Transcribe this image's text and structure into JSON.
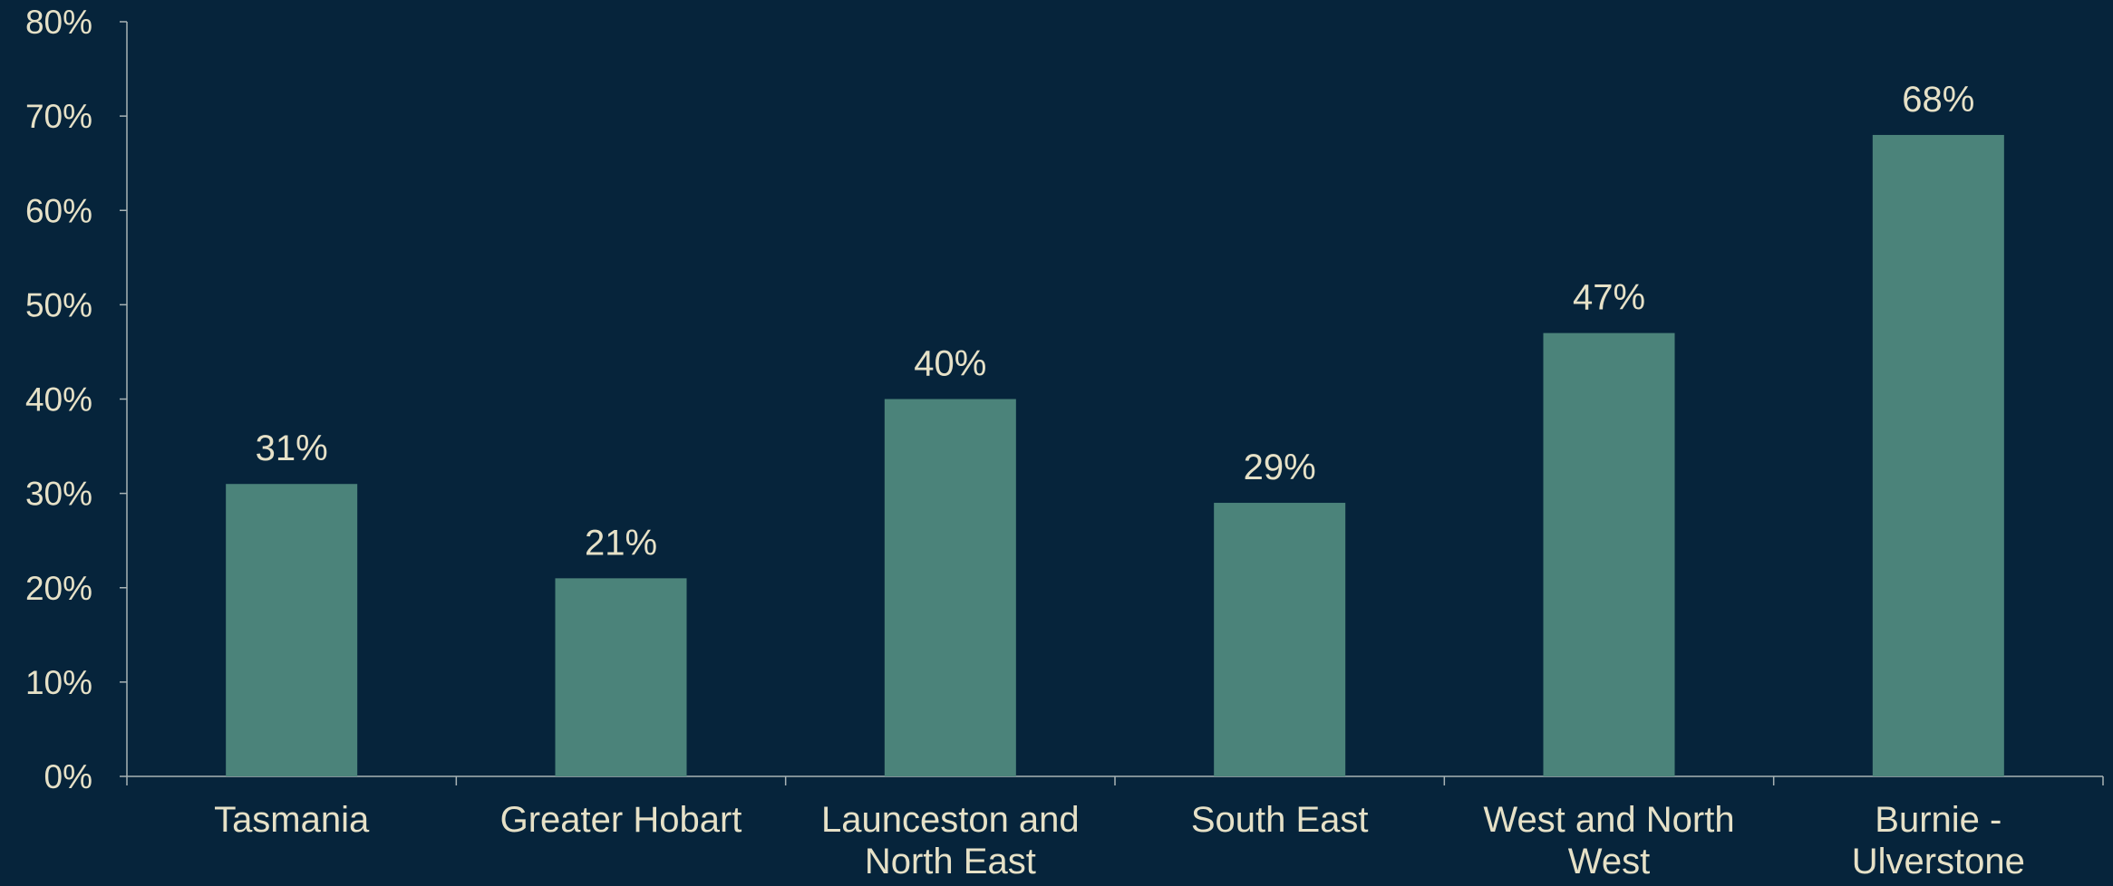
{
  "colors": {
    "background": "#06243b",
    "bar": "#4b837a",
    "text": "#e6e1c7",
    "axis": "#a8b3b5"
  },
  "chart_data": {
    "type": "bar",
    "categories": [
      [
        "Tasmania"
      ],
      [
        "Greater Hobart"
      ],
      [
        "Launceston and",
        "North East"
      ],
      [
        "South East"
      ],
      [
        "West and North",
        "West"
      ],
      [
        "Burnie -",
        "Ulverstone"
      ]
    ],
    "values": [
      31,
      21,
      40,
      29,
      47,
      68
    ],
    "data_labels": [
      "31%",
      "21%",
      "40%",
      "29%",
      "47%",
      "68%"
    ],
    "y_ticks": [
      "0%",
      "10%",
      "20%",
      "30%",
      "40%",
      "50%",
      "60%",
      "70%",
      "80%"
    ],
    "ylim": [
      0,
      80
    ],
    "title": "",
    "xlabel": "",
    "ylabel": "",
    "grid": false,
    "legend": "none"
  }
}
